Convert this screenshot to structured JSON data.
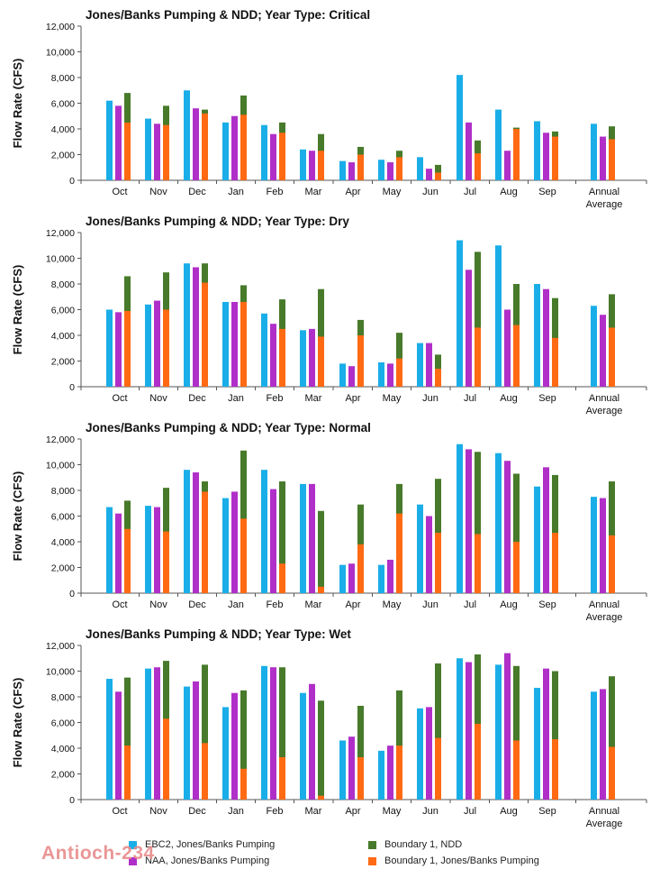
{
  "watermark": "Antioch-234",
  "colors": {
    "ebc2": "#1aaee8",
    "naa": "#b02fc8",
    "ndd_total": "#477a2a",
    "jb_part": "#ff6a13",
    "axis": "#555555",
    "text": "#111111"
  },
  "legend": [
    {
      "label": "EBC2, Jones/Banks Pumping",
      "color": "#1aaee8"
    },
    {
      "label": "NAA, Jones/Banks Pumping",
      "color": "#b02fc8"
    },
    {
      "label": "Boundary 1, NDD",
      "color": "#477a2a"
    },
    {
      "label": "Boundary 1, Jones/Banks Pumping",
      "color": "#ff6a13"
    }
  ],
  "chart_data": [
    {
      "type": "bar",
      "title": "Jones/Banks Pumping & NDD; Year Type: Critical",
      "ylabel": "Flow Rate (CFS)",
      "ylim": [
        0,
        12000
      ],
      "yticks": [
        "0",
        "2,000",
        "4,000",
        "6,000",
        "8,000",
        "10,000",
        "12,000"
      ],
      "categories": [
        "Oct",
        "Nov",
        "Dec",
        "Jan",
        "Feb",
        "Mar",
        "Apr",
        "May",
        "Jun",
        "Jul",
        "Aug",
        "Sep",
        "Annual Average"
      ],
      "series": [
        {
          "name": "EBC2, Jones/Banks Pumping",
          "values": [
            6200,
            4800,
            7000,
            4500,
            4300,
            2400,
            1500,
            1600,
            1800,
            8200,
            5500,
            4600,
            4400
          ]
        },
        {
          "name": "NAA, Jones/Banks Pumping",
          "values": [
            5800,
            4400,
            5600,
            5000,
            3600,
            2300,
            1400,
            1400,
            900,
            4500,
            2300,
            3700,
            3400
          ]
        },
        {
          "name": "Boundary 1, NDD",
          "values": [
            6800,
            5800,
            5500,
            6600,
            4500,
            3600,
            2600,
            2300,
            1200,
            3100,
            4100,
            3800,
            4200
          ]
        },
        {
          "name": "Boundary 1, Jones/Banks Pumping",
          "values": [
            4500,
            4300,
            5200,
            5100,
            3700,
            2300,
            2000,
            1800,
            600,
            2100,
            4000,
            3400,
            3200
          ]
        }
      ]
    },
    {
      "type": "bar",
      "title": "Jones/Banks Pumping & NDD; Year Type: Dry",
      "ylabel": "Flow Rate (CFS)",
      "ylim": [
        0,
        12000
      ],
      "yticks": [
        "0",
        "2,000",
        "4,000",
        "6,000",
        "8,000",
        "10,000",
        "12,000"
      ],
      "categories": [
        "Oct",
        "Nov",
        "Dec",
        "Jan",
        "Feb",
        "Mar",
        "Apr",
        "May",
        "Jun",
        "Jul",
        "Aug",
        "Sep",
        "Annual Average"
      ],
      "series": [
        {
          "name": "EBC2, Jones/Banks Pumping",
          "values": [
            6000,
            6400,
            9600,
            6600,
            5700,
            4400,
            1800,
            1900,
            3400,
            11400,
            11000,
            8000,
            6300
          ]
        },
        {
          "name": "NAA, Jones/Banks Pumping",
          "values": [
            5800,
            6700,
            9300,
            6600,
            4900,
            4500,
            1600,
            1800,
            3400,
            9100,
            6000,
            7600,
            5600
          ]
        },
        {
          "name": "Boundary 1, NDD",
          "values": [
            8600,
            8900,
            9600,
            7900,
            6800,
            7600,
            5200,
            4200,
            2500,
            10500,
            8000,
            6900,
            7200
          ]
        },
        {
          "name": "Boundary 1, Jones/Banks Pumping",
          "values": [
            5900,
            6000,
            8100,
            6600,
            4500,
            3900,
            4000,
            2200,
            1400,
            4600,
            4800,
            3800,
            4600
          ]
        }
      ]
    },
    {
      "type": "bar",
      "title": "Jones/Banks Pumping & NDD; Year Type: Normal",
      "ylabel": "Flow Rate (CFS)",
      "ylim": [
        0,
        12000
      ],
      "yticks": [
        "0",
        "2,000",
        "4,000",
        "6,000",
        "8,000",
        "10,000",
        "12,000"
      ],
      "categories": [
        "Oct",
        "Nov",
        "Dec",
        "Jan",
        "Feb",
        "Mar",
        "Apr",
        "May",
        "Jun",
        "Jul",
        "Aug",
        "Sep",
        "Annual Average"
      ],
      "series": [
        {
          "name": "EBC2, Jones/Banks Pumping",
          "values": [
            6700,
            6800,
            9600,
            7400,
            9600,
            8500,
            2200,
            2200,
            6900,
            11600,
            10900,
            8300,
            7500
          ]
        },
        {
          "name": "NAA, Jones/Banks Pumping",
          "values": [
            6200,
            6700,
            9400,
            7900,
            8100,
            8500,
            2300,
            2600,
            6000,
            11200,
            10300,
            9800,
            7400
          ]
        },
        {
          "name": "Boundary 1, NDD",
          "values": [
            7200,
            8200,
            8700,
            11100,
            8700,
            6400,
            6900,
            8500,
            8900,
            11000,
            9300,
            9200,
            8700
          ]
        },
        {
          "name": "Boundary 1, Jones/Banks Pumping",
          "values": [
            5000,
            4800,
            7900,
            5800,
            2300,
            500,
            3800,
            6200,
            4700,
            4600,
            4000,
            4700,
            4500
          ]
        }
      ]
    },
    {
      "type": "bar",
      "title": "Jones/Banks Pumping & NDD; Year Type: Wet",
      "ylabel": "Flow Rate (CFS)",
      "ylim": [
        0,
        12000
      ],
      "yticks": [
        "0",
        "2,000",
        "4,000",
        "6,000",
        "8,000",
        "10,000",
        "12,000"
      ],
      "categories": [
        "Oct",
        "Nov",
        "Dec",
        "Jan",
        "Feb",
        "Mar",
        "Apr",
        "May",
        "Jun",
        "Jul",
        "Aug",
        "Sep",
        "Annual Average"
      ],
      "series": [
        {
          "name": "EBC2, Jones/Banks Pumping",
          "values": [
            9400,
            10200,
            8800,
            7200,
            10400,
            8300,
            4600,
            3800,
            7100,
            11000,
            10500,
            8700,
            8400
          ]
        },
        {
          "name": "NAA, Jones/Banks Pumping",
          "values": [
            8400,
            10300,
            9200,
            8300,
            10300,
            9000,
            4900,
            4200,
            7200,
            10700,
            11400,
            10200,
            8600
          ]
        },
        {
          "name": "Boundary 1, NDD",
          "values": [
            9500,
            10800,
            10500,
            8500,
            10300,
            7700,
            7300,
            8500,
            10600,
            11300,
            10400,
            10000,
            9600
          ]
        },
        {
          "name": "Boundary 1, Jones/Banks Pumping",
          "values": [
            4200,
            6300,
            4400,
            2400,
            3300,
            300,
            3300,
            4200,
            4800,
            5900,
            4600,
            4700,
            4100
          ]
        }
      ]
    }
  ]
}
